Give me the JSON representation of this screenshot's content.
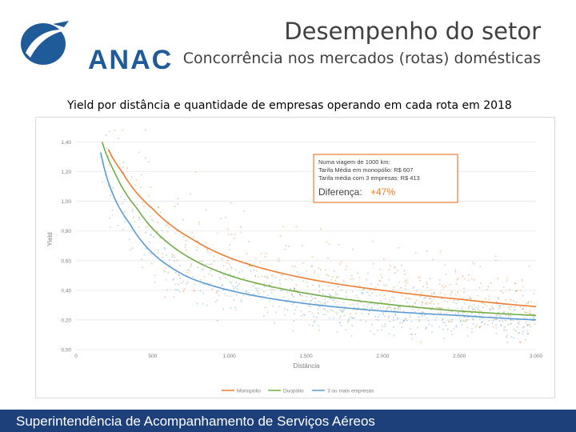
{
  "header": {
    "logo_text": "ANAC",
    "title": "Desempenho do setor",
    "subtitle": "Concorrência nos mercados (rotas) domésticas"
  },
  "chart_caption": "Yield por distância e quantidade de empresas operando em cada rota em 2018",
  "footer": {
    "text": "Superintendência de Acompanhamento de Serviços Aéreos"
  },
  "colors": {
    "brand": "#1f5a99",
    "footer_bg": "#1d3f7a",
    "monopolio": "#ed7d31",
    "duopolio": "#70ad47",
    "tres_ou_mais": "#5b9bd5"
  },
  "icons": {
    "logo": "anac-airplane-swoosh-icon"
  },
  "chart_data": {
    "type": "scatter",
    "xlabel": "Distância",
    "ylabel": "Yield",
    "xlim": [
      0,
      3000
    ],
    "ylim": [
      0,
      1.5
    ],
    "x_ticks": [
      0,
      500,
      1000,
      1500,
      2000,
      2500,
      3000
    ],
    "x_tick_labels": [
      "0",
      "500",
      "1.000",
      "1.500",
      "2.000",
      "2.500",
      "3.000"
    ],
    "y_ticks": [
      0,
      0.2,
      0.4,
      0.6,
      0.8,
      1.0,
      1.2,
      1.4
    ],
    "y_tick_labels": [
      "0,00",
      "0,20",
      "0,40",
      "0,60",
      "0,80",
      "1,00",
      "1,20",
      "1,40"
    ],
    "grid": "horizontal",
    "legend_position": "bottom",
    "series": [
      {
        "name": "Monopólio",
        "color": "#ed7d31",
        "trend": [
          [
            210,
            1.35
          ],
          [
            300,
            1.2
          ],
          [
            500,
            0.95
          ],
          [
            750,
            0.75
          ],
          [
            1000,
            0.62
          ],
          [
            1500,
            0.48
          ],
          [
            2000,
            0.4
          ],
          [
            2500,
            0.34
          ],
          [
            3000,
            0.29
          ]
        ]
      },
      {
        "name": "Duopólio",
        "color": "#70ad47",
        "trend": [
          [
            170,
            1.4
          ],
          [
            250,
            1.2
          ],
          [
            400,
            0.95
          ],
          [
            600,
            0.72
          ],
          [
            1000,
            0.5
          ],
          [
            1500,
            0.38
          ],
          [
            2000,
            0.31
          ],
          [
            2500,
            0.26
          ],
          [
            3000,
            0.23
          ]
        ]
      },
      {
        "name": "3 ou mais empresas",
        "color": "#5b9bd5",
        "trend": [
          [
            160,
            1.33
          ],
          [
            220,
            1.1
          ],
          [
            350,
            0.85
          ],
          [
            500,
            0.65
          ],
          [
            750,
            0.48
          ],
          [
            1000,
            0.4
          ],
          [
            1500,
            0.31
          ],
          [
            2000,
            0.26
          ],
          [
            2500,
            0.23
          ],
          [
            3000,
            0.2
          ]
        ]
      }
    ],
    "annotation": {
      "line1": "Numa viagem de 1000 km:",
      "line2": "Tarifa Média em monopólio: R$ 607",
      "line3": "Tarifa média com 3 empresas: R$ 413",
      "diff_label": "Diferença:",
      "diff_value": "+47%"
    }
  }
}
